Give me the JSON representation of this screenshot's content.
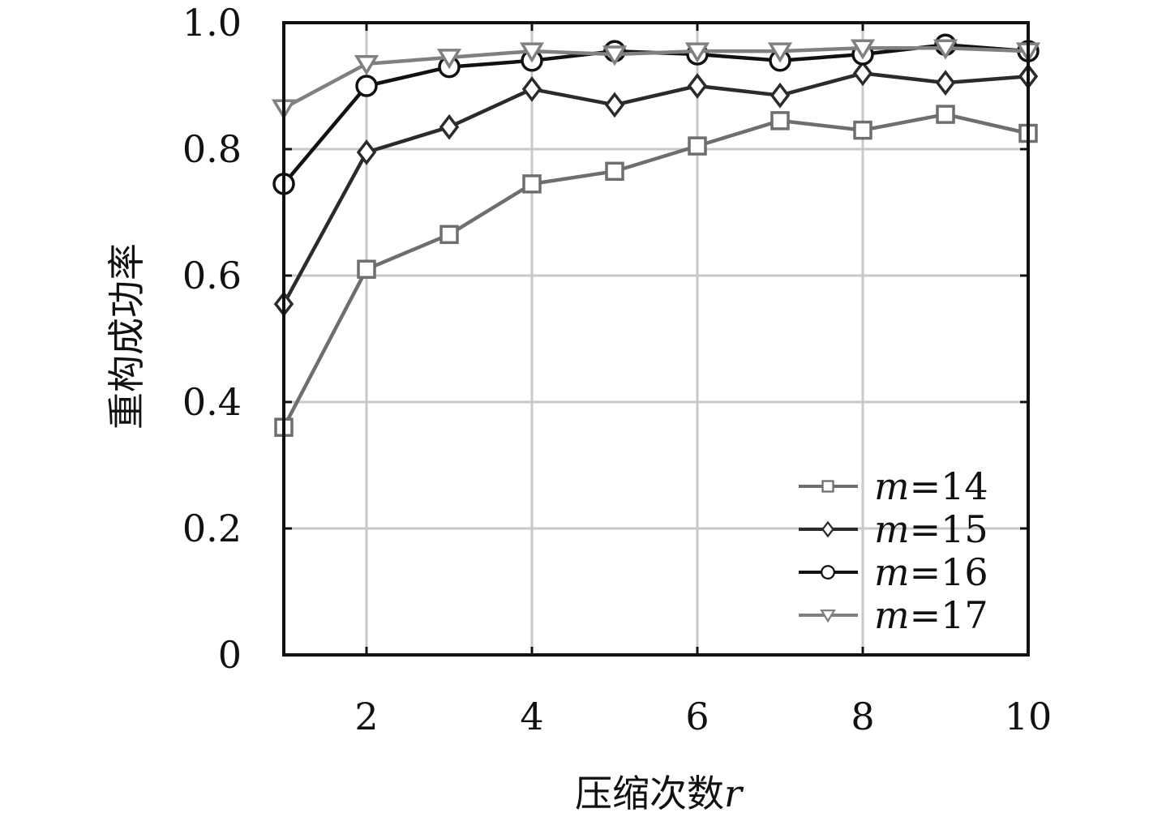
{
  "chart_data": {
    "type": "line",
    "x": [
      1,
      2,
      3,
      4,
      5,
      6,
      7,
      8,
      9,
      10
    ],
    "xlim": [
      1,
      10
    ],
    "ylim": [
      0,
      1
    ],
    "xticks": [
      "2",
      "4",
      "6",
      "8",
      "10"
    ],
    "xtick_values": [
      2,
      4,
      6,
      8,
      10
    ],
    "yticks": [
      "0",
      "0.2",
      "0.4",
      "0.6",
      "0.8",
      "1.0"
    ],
    "ytick_values": [
      0,
      0.2,
      0.4,
      0.6,
      0.8,
      1.0
    ],
    "xlabel": "压缩次数",
    "xlabel_var": "r",
    "ylabel": "重构成功率",
    "grid": true,
    "legend_position": "bottom-right",
    "series": [
      {
        "name": "m=14",
        "legend_var": "m",
        "legend_val": "=14",
        "marker": "square",
        "color": "#6e6e6e",
        "values": [
          0.36,
          0.61,
          0.665,
          0.745,
          0.765,
          0.805,
          0.845,
          0.83,
          0.855,
          0.825
        ]
      },
      {
        "name": "m=15",
        "legend_var": "m",
        "legend_val": "=15",
        "marker": "diamond",
        "color": "#2b2b2b",
        "values": [
          0.555,
          0.795,
          0.835,
          0.895,
          0.87,
          0.9,
          0.885,
          0.92,
          0.905,
          0.915
        ]
      },
      {
        "name": "m=16",
        "legend_var": "m",
        "legend_val": "=16",
        "marker": "circle",
        "color": "#111111",
        "values": [
          0.745,
          0.9,
          0.93,
          0.94,
          0.955,
          0.95,
          0.94,
          0.95,
          0.965,
          0.955
        ]
      },
      {
        "name": "m=17",
        "legend_var": "m",
        "legend_val": "=17",
        "marker": "triangle-down",
        "color": "#808080",
        "values": [
          0.865,
          0.935,
          0.945,
          0.955,
          0.95,
          0.955,
          0.955,
          0.96,
          0.96,
          0.955
        ]
      }
    ]
  }
}
